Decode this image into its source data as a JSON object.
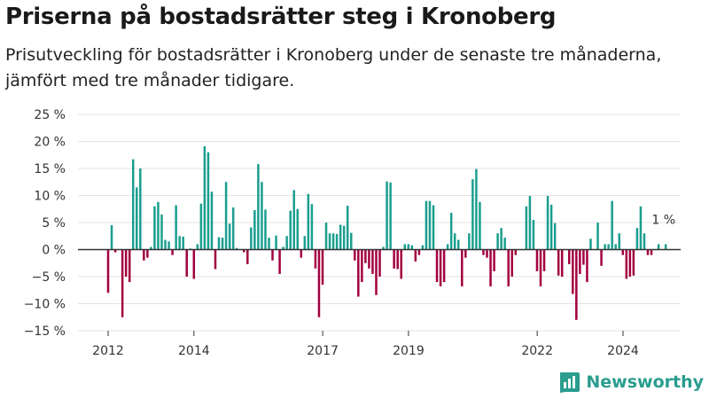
{
  "title": "Priserna på bostadsrätter steg i Kronoberg",
  "subtitle": "Prisutveckling för bostadsrätter i Kronoberg under de senaste tre månaderna, jämfört med tre månader tidigare.",
  "brand": "Newsworthy",
  "colors": {
    "positive": "#1a9e8f",
    "negative": "#a3003f",
    "zero_line": "#333333",
    "grid": "#e3e3e3"
  },
  "chart_data": {
    "type": "bar",
    "ylim": [
      -15,
      25
    ],
    "yticks": [
      -15,
      -10,
      -5,
      0,
      5,
      10,
      15,
      20,
      25
    ],
    "ytick_labels": [
      "−15 %",
      "−10 %",
      "−5 %",
      "0 %",
      "5 %",
      "10 %",
      "15 %",
      "20 %",
      "25 %"
    ],
    "xlim": [
      2011.5,
      2025.5
    ],
    "xticks": [
      2012,
      2014,
      2017,
      2019,
      2022,
      2024
    ],
    "xtick_labels": [
      "2012",
      "2014",
      "2017",
      "2019",
      "2022",
      "2024"
    ],
    "annotation": {
      "text": "1 %",
      "x": 2025.0,
      "y": 1
    },
    "x_start": 2012.0,
    "x_step": 0.0833,
    "values": [
      -8,
      4.5,
      -0.5,
      0,
      -12.5,
      -5,
      -6,
      16.7,
      11.5,
      15,
      -2,
      -1.5,
      0.5,
      8,
      8.8,
      6.5,
      1.8,
      1.5,
      -1,
      8.2,
      2.5,
      2.4,
      -5,
      0.2,
      -5.4,
      1,
      8.5,
      19.1,
      18,
      10.7,
      -3.6,
      2.3,
      2.2,
      12.5,
      4.8,
      7.8,
      0.3,
      0,
      -0.5,
      -2.7,
      4.1,
      7.3,
      15.8,
      12.5,
      7.4,
      2.2,
      -2,
      2.6,
      -4.5,
      0.5,
      2.5,
      7.2,
      11,
      7.5,
      -1.5,
      2.5,
      10.3,
      8.4,
      -3.5,
      -12.5,
      -6.5,
      5,
      3,
      3,
      2.9,
      4.6,
      4.4,
      8.1,
      3.1,
      -2,
      -8.7,
      -6,
      -2.5,
      -3.5,
      -4.5,
      -8.4,
      -5,
      0.5,
      12.6,
      12.4,
      -3.5,
      -3.6,
      -5.4,
      1,
      1,
      0.8,
      -2.2,
      -1,
      0.8,
      9,
      9,
      8.2,
      -6,
      -6.8,
      -6,
      1,
      6.8,
      3,
      1.8,
      -6.8,
      -1.5,
      3,
      13,
      14.9,
      8.8,
      -1,
      -1.5,
      -6.8,
      -4,
      3,
      4,
      2.2,
      -6.8,
      -5,
      -1,
      0,
      0,
      8,
      9.9,
      5.5,
      -4,
      -6.8,
      -4,
      9.9,
      8.3,
      4.9,
      -4.8,
      -5,
      0,
      -2.7,
      -8.2,
      -13,
      -4.5,
      -2.8,
      -6,
      2,
      0,
      5,
      -3,
      1,
      1,
      9,
      1,
      3,
      -1,
      -5.4,
      -5,
      -4.8,
      4,
      8,
      3,
      -1,
      -1,
      0,
      1,
      0,
      1
    ]
  }
}
